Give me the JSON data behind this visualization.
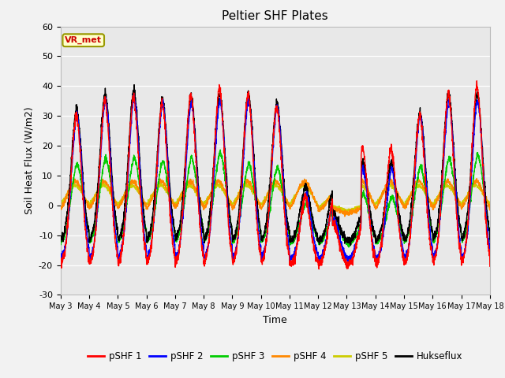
{
  "title": "Peltier SHF Plates",
  "ylabel": "Soil Heat Flux (W/m2)",
  "xlabel": "Time",
  "ylim": [
    -30,
    60
  ],
  "xlim": [
    0,
    15
  ],
  "yticks": [
    -30,
    -20,
    -10,
    0,
    10,
    20,
    30,
    40,
    50,
    60
  ],
  "xtick_labels": [
    "May 3",
    "May 4",
    "May 5",
    "May 6",
    "May 7",
    "May 8",
    "May 9",
    "May 10",
    "May 11",
    "May 12",
    "May 13",
    "May 14",
    "May 15",
    "May 16",
    "May 17",
    "May 18"
  ],
  "vr_met_label": "VR_met",
  "series_colors": {
    "pSHF 1": "#ff0000",
    "pSHF 2": "#0000ff",
    "pSHF 3": "#00cc00",
    "pSHF 4": "#ff8800",
    "pSHF 5": "#cccc00",
    "Hukseflux": "#000000"
  },
  "fig_facecolor": "#f2f2f2",
  "plot_bg_color": "#e8e8e8",
  "grid_color": "#ffffff",
  "annotation_box_facecolor": "#ffffcc",
  "annotation_box_edgecolor": "#999900"
}
